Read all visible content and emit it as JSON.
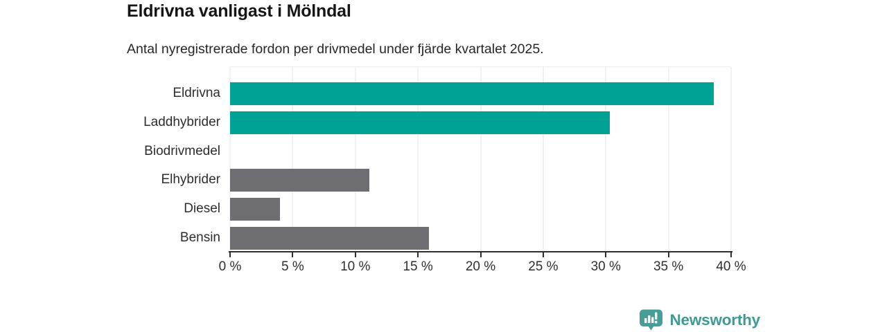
{
  "header": {
    "title": "Eldrivna vanligast i Mölndal",
    "subtitle": "Antal nyregistrerade fordon per drivmedel under fjärde kvartalet 2025."
  },
  "chart_data": {
    "type": "bar",
    "orientation": "horizontal",
    "title": "Eldrivna vanligast i Mölndal",
    "subtitle": "Antal nyregistrerade fordon per drivmedel under fjärde kvartalet 2025.",
    "categories": [
      "Eldrivna",
      "Laddhybrider",
      "Biodrivmedel",
      "Elhybrider",
      "Diesel",
      "Bensin"
    ],
    "values": [
      38.6,
      30.3,
      0,
      11.1,
      4,
      15.9
    ],
    "unit": "%",
    "xlim": [
      0,
      40
    ],
    "xtick_values": [
      0,
      5,
      10,
      15,
      20,
      25,
      30,
      35,
      40
    ],
    "xtick_labels": [
      "0 %",
      "5 %",
      "10 %",
      "15 %",
      "20 %",
      "25 %",
      "30 %",
      "35 %",
      "40 %"
    ],
    "bar_colors": [
      "#00a296",
      "#00a296",
      "#6e6e72",
      "#6e6e72",
      "#6e6e72",
      "#6e6e72"
    ],
    "highlight_color": "#00a296",
    "default_color": "#6e6e72",
    "grid": "vertical",
    "gridline_color": "#e3e3e3",
    "legend": "none"
  },
  "branding": {
    "label": "Newsworthy",
    "color": "#3e9b94",
    "icon": "newsworthy-chart-bubble-icon"
  }
}
